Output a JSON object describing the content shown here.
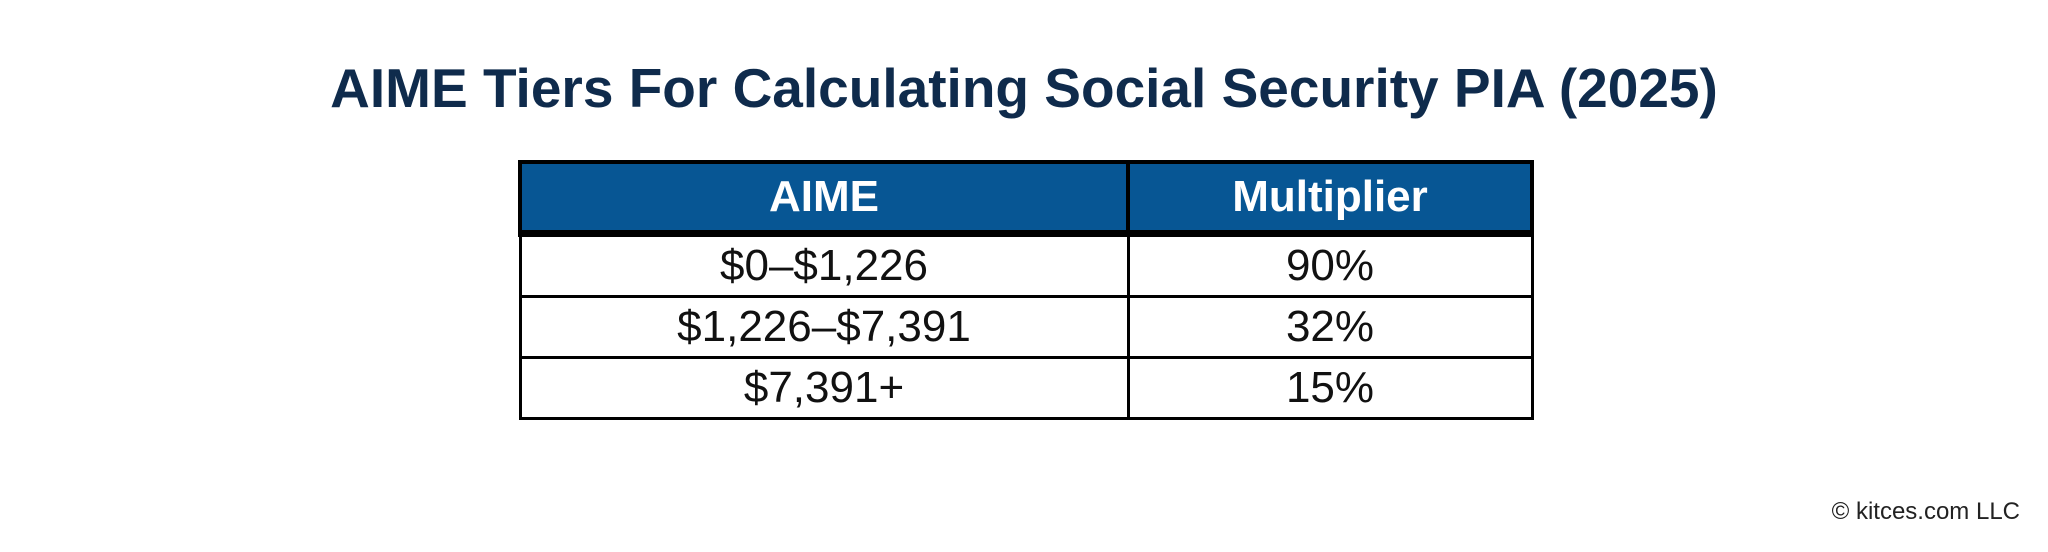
{
  "title": "AIME Tiers For Calculating Social Security PIA (2025)",
  "table": {
    "headers": [
      "AIME",
      "Multiplier"
    ],
    "rows": [
      [
        "$0–$1,226",
        "90%"
      ],
      [
        "$1,226–$7,391",
        "32%"
      ],
      [
        "$7,391+",
        "15%"
      ]
    ]
  },
  "footer": {
    "copyright": "© kitces.com LLC"
  },
  "colors": {
    "title": "#0f2b4c",
    "header_bg": "#075694",
    "header_text": "#ffffff",
    "border": "#000000"
  }
}
